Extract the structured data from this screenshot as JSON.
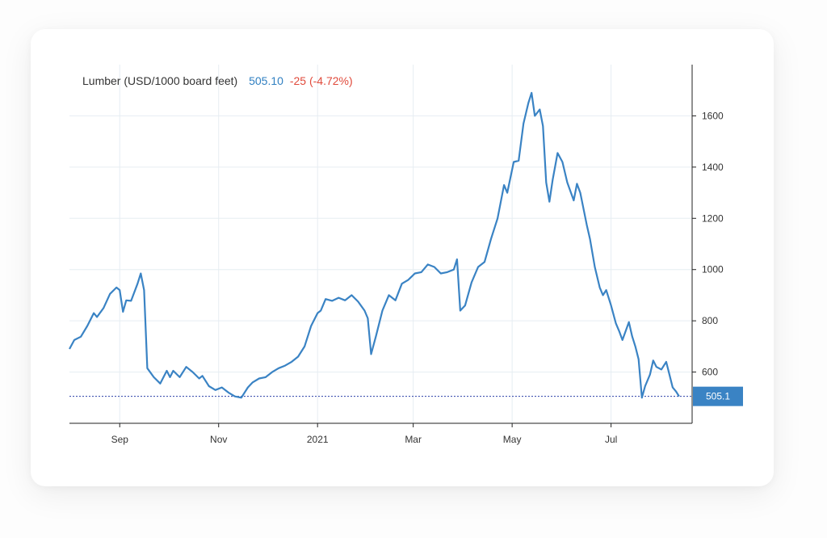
{
  "legend": {
    "name": "Lumber (USD/1000 board feet)",
    "price": "505.10",
    "change": "-25 (-4.72%)"
  },
  "price_tag": "505.1",
  "colors": {
    "series": "#3a83c4",
    "price": "#2f7fc1",
    "change": "#e04a3b",
    "grid": "#e6edf2",
    "tag_bg": "#3a83c4"
  },
  "chart_data": {
    "type": "line",
    "title": "",
    "xlabel": "",
    "ylabel": "",
    "ylim": [
      400,
      1800
    ],
    "xlim": [
      "2020-08-01",
      "2021-08-20"
    ],
    "y_ticks": [
      600,
      800,
      1000,
      1200,
      1400,
      1600
    ],
    "x_ticks": [
      {
        "date": "2020-09-01",
        "label": "Sep"
      },
      {
        "date": "2020-11-01",
        "label": "Nov"
      },
      {
        "date": "2021-01-01",
        "label": "2021"
      },
      {
        "date": "2021-03-01",
        "label": "Mar"
      },
      {
        "date": "2021-05-01",
        "label": "May"
      },
      {
        "date": "2021-07-01",
        "label": "Jul"
      }
    ],
    "reference_line": 505.1,
    "series": [
      {
        "values": [
          [
            "2020-08-01",
            690
          ],
          [
            "2020-08-04",
            725
          ],
          [
            "2020-08-08",
            738
          ],
          [
            "2020-08-12",
            780
          ],
          [
            "2020-08-16",
            830
          ],
          [
            "2020-08-18",
            815
          ],
          [
            "2020-08-22",
            850
          ],
          [
            "2020-08-26",
            905
          ],
          [
            "2020-08-30",
            930
          ],
          [
            "2020-09-01",
            920
          ],
          [
            "2020-09-03",
            835
          ],
          [
            "2020-09-05",
            880
          ],
          [
            "2020-09-08",
            878
          ],
          [
            "2020-09-12",
            945
          ],
          [
            "2020-09-14",
            985
          ],
          [
            "2020-09-16",
            920
          ],
          [
            "2020-09-18",
            615
          ],
          [
            "2020-09-22",
            580
          ],
          [
            "2020-09-26",
            555
          ],
          [
            "2020-09-30",
            605
          ],
          [
            "2020-10-02",
            580
          ],
          [
            "2020-10-04",
            605
          ],
          [
            "2020-10-08",
            580
          ],
          [
            "2020-10-12",
            620
          ],
          [
            "2020-10-16",
            600
          ],
          [
            "2020-10-20",
            575
          ],
          [
            "2020-10-22",
            585
          ],
          [
            "2020-10-26",
            545
          ],
          [
            "2020-10-30",
            530
          ],
          [
            "2020-11-03",
            540
          ],
          [
            "2020-11-07",
            520
          ],
          [
            "2020-11-11",
            505
          ],
          [
            "2020-11-15",
            500
          ],
          [
            "2020-11-19",
            540
          ],
          [
            "2020-11-22",
            560
          ],
          [
            "2020-11-26",
            575
          ],
          [
            "2020-11-30",
            580
          ],
          [
            "2020-12-04",
            600
          ],
          [
            "2020-12-08",
            615
          ],
          [
            "2020-12-12",
            625
          ],
          [
            "2020-12-16",
            640
          ],
          [
            "2020-12-20",
            660
          ],
          [
            "2020-12-24",
            700
          ],
          [
            "2020-12-28",
            780
          ],
          [
            "2021-01-01",
            830
          ],
          [
            "2021-01-03",
            840
          ],
          [
            "2021-01-06",
            885
          ],
          [
            "2021-01-10",
            878
          ],
          [
            "2021-01-14",
            890
          ],
          [
            "2021-01-18",
            880
          ],
          [
            "2021-01-22",
            900
          ],
          [
            "2021-01-26",
            875
          ],
          [
            "2021-01-30",
            840
          ],
          [
            "2021-02-01",
            810
          ],
          [
            "2021-02-03",
            670
          ],
          [
            "2021-02-06",
            740
          ],
          [
            "2021-02-10",
            840
          ],
          [
            "2021-02-14",
            900
          ],
          [
            "2021-02-18",
            880
          ],
          [
            "2021-02-22",
            945
          ],
          [
            "2021-02-26",
            960
          ],
          [
            "2021-03-02",
            985
          ],
          [
            "2021-03-06",
            990
          ],
          [
            "2021-03-10",
            1020
          ],
          [
            "2021-03-14",
            1010
          ],
          [
            "2021-03-18",
            985
          ],
          [
            "2021-03-22",
            990
          ],
          [
            "2021-03-26",
            1000
          ],
          [
            "2021-03-28",
            1040
          ],
          [
            "2021-03-30",
            840
          ],
          [
            "2021-04-02",
            860
          ],
          [
            "2021-04-06",
            950
          ],
          [
            "2021-04-10",
            1010
          ],
          [
            "2021-04-14",
            1030
          ],
          [
            "2021-04-18",
            1120
          ],
          [
            "2021-04-22",
            1200
          ],
          [
            "2021-04-26",
            1330
          ],
          [
            "2021-04-28",
            1300
          ],
          [
            "2021-05-02",
            1420
          ],
          [
            "2021-05-05",
            1425
          ],
          [
            "2021-05-08",
            1570
          ],
          [
            "2021-05-11",
            1650
          ],
          [
            "2021-05-13",
            1690
          ],
          [
            "2021-05-15",
            1600
          ],
          [
            "2021-05-18",
            1625
          ],
          [
            "2021-05-20",
            1560
          ],
          [
            "2021-05-22",
            1340
          ],
          [
            "2021-05-24",
            1265
          ],
          [
            "2021-05-26",
            1350
          ],
          [
            "2021-05-29",
            1455
          ],
          [
            "2021-06-01",
            1420
          ],
          [
            "2021-06-04",
            1340
          ],
          [
            "2021-06-08",
            1270
          ],
          [
            "2021-06-10",
            1335
          ],
          [
            "2021-06-12",
            1300
          ],
          [
            "2021-06-16",
            1175
          ],
          [
            "2021-06-18",
            1120
          ],
          [
            "2021-06-21",
            1010
          ],
          [
            "2021-06-24",
            930
          ],
          [
            "2021-06-26",
            900
          ],
          [
            "2021-06-28",
            920
          ],
          [
            "2021-07-01",
            860
          ],
          [
            "2021-07-04",
            790
          ],
          [
            "2021-07-06",
            760
          ],
          [
            "2021-07-08",
            725
          ],
          [
            "2021-07-12",
            795
          ],
          [
            "2021-07-14",
            740
          ],
          [
            "2021-07-16",
            700
          ],
          [
            "2021-07-18",
            650
          ],
          [
            "2021-07-20",
            500
          ],
          [
            "2021-07-22",
            545
          ],
          [
            "2021-07-25",
            590
          ],
          [
            "2021-07-27",
            645
          ],
          [
            "2021-07-29",
            620
          ],
          [
            "2021-08-01",
            610
          ],
          [
            "2021-08-04",
            640
          ],
          [
            "2021-08-06",
            590
          ],
          [
            "2021-08-08",
            540
          ],
          [
            "2021-08-10",
            525
          ],
          [
            "2021-08-12",
            505
          ]
        ]
      }
    ]
  }
}
